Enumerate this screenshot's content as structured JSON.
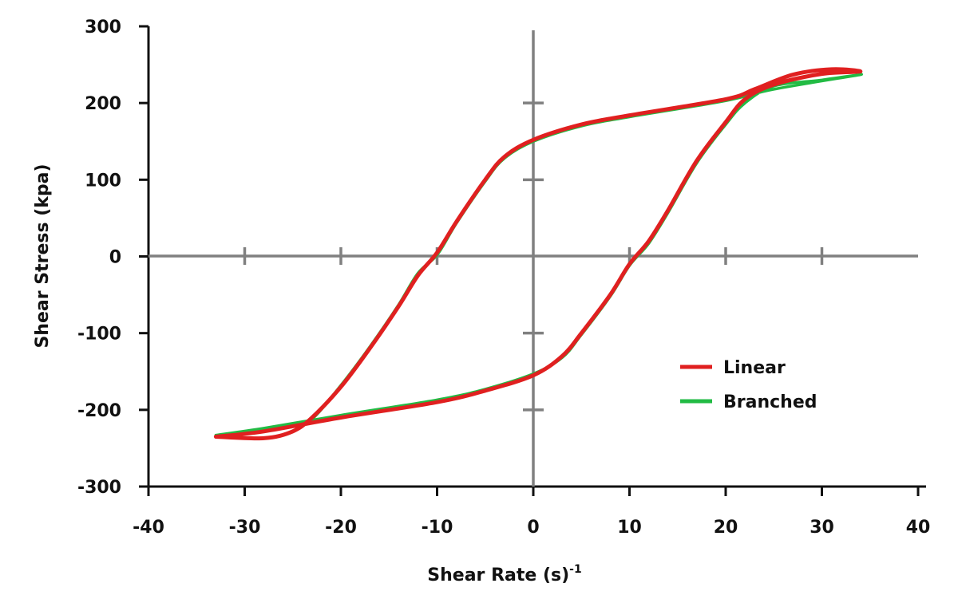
{
  "chart_data": {
    "type": "line",
    "xlabel": "Shear Rate (s)",
    "xlabel_sup": "-1",
    "ylabel": "Shear Stress (kpa)",
    "xlim": [
      -40,
      40
    ],
    "ylim": [
      -300,
      300
    ],
    "x_ticks": [
      -40,
      -30,
      -20,
      -10,
      0,
      10,
      20,
      30,
      40
    ],
    "y_ticks": [
      300,
      200,
      100,
      0,
      -100,
      -200,
      -300
    ],
    "x_tick_labels": [
      "-40",
      "-30",
      "-20",
      "-10",
      "0",
      "10",
      "20",
      "30",
      "40"
    ],
    "y_tick_labels": [
      "300",
      "200",
      "100",
      "0",
      "-100",
      "-200",
      "-300"
    ],
    "grid": false,
    "legend_position": "right",
    "series": [
      {
        "name": "Linear",
        "color": "#e02020",
        "points": [
          [
            -33,
            -235
          ],
          [
            -28,
            -237
          ],
          [
            -25,
            -228
          ],
          [
            -23,
            -210
          ],
          [
            -20,
            -170
          ],
          [
            -17,
            -120
          ],
          [
            -14,
            -65
          ],
          [
            -12,
            -25
          ],
          [
            -10,
            5
          ],
          [
            -8,
            45
          ],
          [
            -5,
            100
          ],
          [
            -3,
            130
          ],
          [
            0,
            152
          ],
          [
            5,
            172
          ],
          [
            10,
            184
          ],
          [
            20,
            205
          ],
          [
            23,
            218
          ],
          [
            27,
            237
          ],
          [
            31,
            244
          ],
          [
            34,
            241
          ],
          [
            30,
            238
          ],
          [
            25,
            224
          ],
          [
            22,
            205
          ],
          [
            20,
            175
          ],
          [
            17,
            125
          ],
          [
            14,
            60
          ],
          [
            12,
            20
          ],
          [
            10,
            -10
          ],
          [
            8,
            -50
          ],
          [
            5,
            -100
          ],
          [
            3,
            -130
          ],
          [
            0,
            -155
          ],
          [
            -5,
            -175
          ],
          [
            -10,
            -190
          ],
          [
            -20,
            -210
          ],
          [
            -28,
            -228
          ],
          [
            -33,
            -235
          ]
        ]
      },
      {
        "name": "Branched",
        "color": "#22bb44",
        "points": [
          [
            -33,
            -233
          ],
          [
            -25,
            -220
          ],
          [
            -23,
            -212
          ],
          [
            -20,
            -168
          ],
          [
            -17,
            -118
          ],
          [
            -14,
            -63
          ],
          [
            -12,
            -22
          ],
          [
            -10,
            2
          ],
          [
            -8,
            43
          ],
          [
            -5,
            98
          ],
          [
            -3,
            128
          ],
          [
            0,
            150
          ],
          [
            5,
            170
          ],
          [
            10,
            182
          ],
          [
            20,
            203
          ],
          [
            25,
            218
          ],
          [
            34,
            237
          ],
          [
            30,
            230
          ],
          [
            25,
            222
          ],
          [
            22,
            200
          ],
          [
            20,
            172
          ],
          [
            17,
            122
          ],
          [
            14,
            57
          ],
          [
            12,
            17
          ],
          [
            10,
            -12
          ],
          [
            8,
            -52
          ],
          [
            5,
            -102
          ],
          [
            3,
            -132
          ],
          [
            0,
            -153
          ],
          [
            -5,
            -173
          ],
          [
            -10,
            -187
          ],
          [
            -20,
            -207
          ],
          [
            -28,
            -224
          ],
          [
            -33,
            -233
          ]
        ]
      }
    ]
  }
}
